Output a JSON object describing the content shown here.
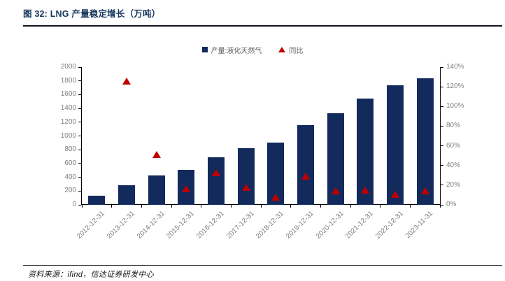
{
  "figure": {
    "title": "图 32:  LNG 产量稳定增长（万吨）",
    "source": "资料来源：ifind，信达证券研发中心"
  },
  "legend": [
    {
      "label": "产量:液化天然气",
      "marker": "square-icon",
      "color": "#132A5C"
    },
    {
      "label": "同比",
      "marker": "triangle-icon",
      "color": "#C00000"
    }
  ],
  "chart_data": {
    "type": "bar",
    "title": "LNG 产量稳定增长（万吨）",
    "categories": [
      "2012-12-31",
      "2013-12-31",
      "2014-12-31",
      "2015-12-31",
      "2016-12-31",
      "2017-12-31",
      "2018-12-31",
      "2019-12-31",
      "2020-12-31",
      "2021-12-31",
      "2022-12-31",
      "2023-11-31"
    ],
    "series": [
      {
        "name": "产量:液化天然气",
        "type": "bar",
        "y_axis": "left",
        "color": "#132A5C",
        "values": [
          130,
          280,
          430,
          510,
          690,
          820,
          900,
          1160,
          1330,
          1540,
          1740,
          1840
        ]
      },
      {
        "name": "同比",
        "type": "scatter",
        "marker": "triangle",
        "y_axis": "right",
        "color": "#C00000",
        "values_pct": [
          null,
          126,
          51,
          16,
          33,
          18,
          8,
          29,
          14,
          15,
          11,
          14
        ]
      }
    ],
    "left_axis": {
      "min": 0,
      "max": 2000,
      "step": 200,
      "tick_labels": [
        "0",
        "200",
        "400",
        "600",
        "800",
        "1000",
        "1200",
        "1400",
        "1600",
        "1800",
        "2000"
      ]
    },
    "right_axis": {
      "min": 0,
      "max": 140,
      "step": 20,
      "tick_labels": [
        "0%",
        "20%",
        "40%",
        "60%",
        "80%",
        "100%",
        "120%",
        "140%"
      ]
    },
    "grid": false,
    "legend_position": "top-center"
  }
}
